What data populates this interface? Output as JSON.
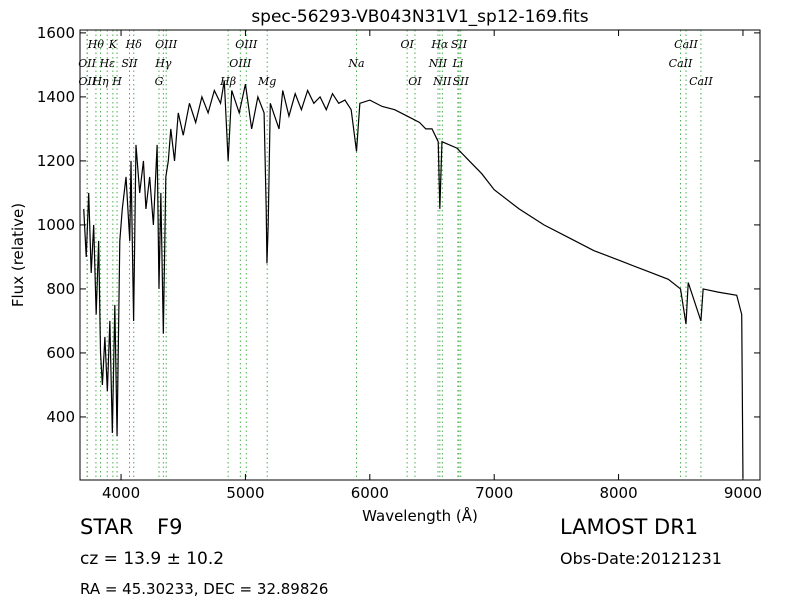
{
  "chart_data": {
    "type": "line",
    "title": "spec-56293-VB043N31V1_sp12-169.fits",
    "xlabel": "Wavelength (Å)",
    "ylabel": "Flux (relative)",
    "color": "#000000",
    "line_color": "#4caf50",
    "xlim": [
      3670,
      9137
    ],
    "ylim": [
      203,
      1609
    ],
    "xticks": [
      4000,
      5000,
      6000,
      7000,
      8000,
      9000
    ],
    "yticks": [
      400,
      600,
      800,
      1000,
      1200,
      1400,
      1600
    ],
    "x": [
      3700,
      3720,
      3740,
      3760,
      3780,
      3800,
      3820,
      3835,
      3850,
      3870,
      3890,
      3910,
      3930,
      3950,
      3968,
      3990,
      4010,
      4040,
      4070,
      4080,
      4101,
      4120,
      4150,
      4180,
      4200,
      4230,
      4260,
      4290,
      4305,
      4320,
      4340,
      4360,
      4380,
      4400,
      4430,
      4460,
      4500,
      4550,
      4600,
      4650,
      4700,
      4750,
      4800,
      4830,
      4861,
      4890,
      4950,
      5000,
      5050,
      5100,
      5150,
      5167,
      5173,
      5183,
      5200,
      5270,
      5300,
      5350,
      5400,
      5450,
      5500,
      5550,
      5600,
      5650,
      5700,
      5750,
      5800,
      5850,
      5893,
      5920,
      6000,
      6100,
      6200,
      6300,
      6400,
      6450,
      6500,
      6550,
      6563,
      6580,
      6700,
      6800,
      6900,
      7000,
      7200,
      7400,
      7600,
      7800,
      8000,
      8200,
      8400,
      8498,
      8542,
      8560,
      8662,
      8680,
      8800,
      8950,
      8990,
      9000
    ],
    "values": [
      1050,
      900,
      1100,
      850,
      1000,
      720,
      950,
      600,
      500,
      650,
      480,
      700,
      350,
      750,
      340,
      950,
      1050,
      1150,
      950,
      1200,
      700,
      1250,
      1100,
      1200,
      1050,
      1150,
      1000,
      1250,
      800,
      1100,
      660,
      1150,
      1200,
      1300,
      1200,
      1350,
      1280,
      1380,
      1320,
      1400,
      1350,
      1420,
      1380,
      1450,
      1200,
      1420,
      1350,
      1440,
      1300,
      1400,
      1350,
      1050,
      880,
      1000,
      1380,
      1300,
      1420,
      1340,
      1410,
      1360,
      1420,
      1380,
      1400,
      1360,
      1410,
      1380,
      1390,
      1360,
      1230,
      1380,
      1390,
      1370,
      1360,
      1340,
      1320,
      1300,
      1300,
      1260,
      1050,
      1260,
      1240,
      1200,
      1160,
      1110,
      1050,
      1000,
      960,
      920,
      890,
      860,
      830,
      800,
      690,
      820,
      700,
      800,
      790,
      780,
      720,
      210
    ],
    "line_labels": [
      [
        {
          "label": "Hθ",
          "wavelength": 3798
        },
        {
          "label": "K",
          "wavelength": 3934
        },
        {
          "label": "Hδ",
          "wavelength": 4102
        },
        {
          "label": "OIII",
          "wavelength": 4363
        },
        {
          "label": "OIII",
          "wavelength": 5007
        },
        {
          "label": "OI",
          "wavelength": 6300
        },
        {
          "label": "Hα",
          "wavelength": 6563
        },
        {
          "label": "SII",
          "wavelength": 6717
        },
        {
          "label": "CaII",
          "wavelength": 8542
        }
      ],
      [
        {
          "label": "OII",
          "wavelength": 3727
        },
        {
          "label": "Hε",
          "wavelength": 3889
        },
        {
          "label": "SII",
          "wavelength": 4068
        },
        {
          "label": "Hγ",
          "wavelength": 4340
        },
        {
          "label": "OIII",
          "wavelength": 4959
        },
        {
          "label": "Na",
          "wavelength": 5893
        },
        {
          "label": "NII",
          "wavelength": 6548
        },
        {
          "label": "Li",
          "wavelength": 6708
        },
        {
          "label": "CaII",
          "wavelength": 8498
        }
      ],
      [
        {
          "label": "OII",
          "wavelength": 3729
        },
        {
          "label": "Hη",
          "wavelength": 3835
        },
        {
          "label": "H",
          "wavelength": 3968
        },
        {
          "label": "G",
          "wavelength": 4305
        },
        {
          "label": "Hβ",
          "wavelength": 4861
        },
        {
          "label": "Mg",
          "wavelength": 5175
        },
        {
          "label": "OI",
          "wavelength": 6363
        },
        {
          "label": "NII",
          "wavelength": 6583
        },
        {
          "label": "SII",
          "wavelength": 6731
        },
        {
          "label": "CaII",
          "wavelength": 8662
        }
      ]
    ],
    "annotations": {
      "class": "STAR",
      "subclass": "F9",
      "cz": "cz = 13.9 ± 10.2",
      "coords": "RA = 45.30233, DEC = 32.89826",
      "survey": "LAMOST DR1",
      "date": "Obs-Date:20121231"
    }
  }
}
